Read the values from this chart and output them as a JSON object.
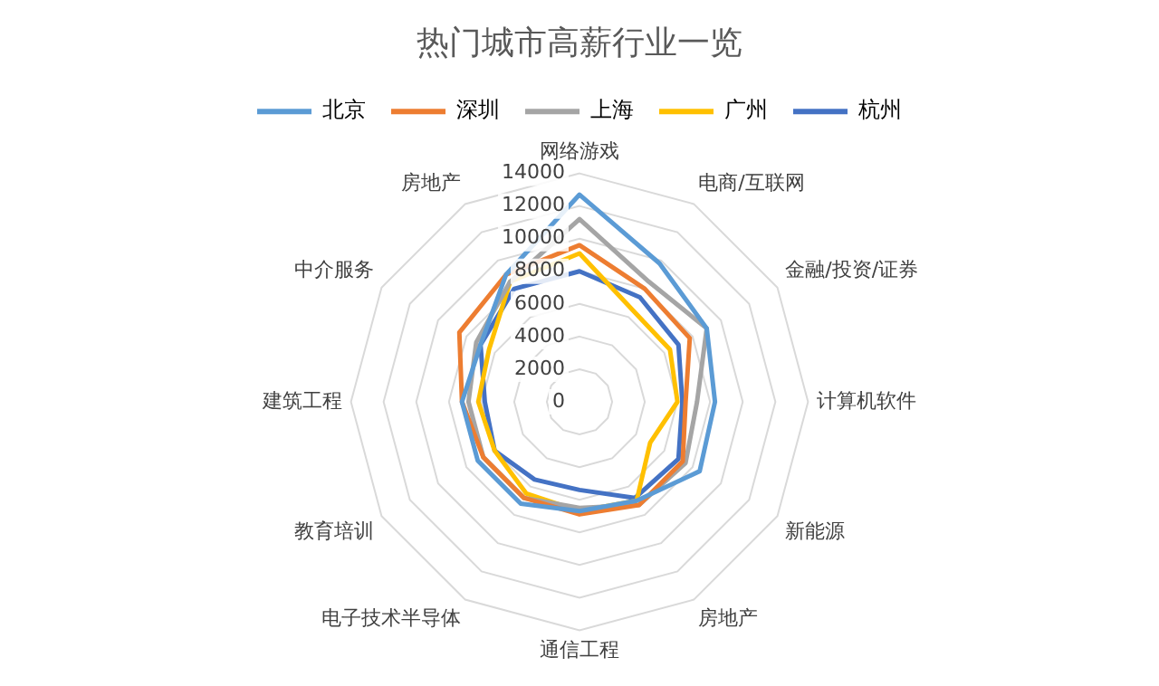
{
  "chart_data": {
    "type": "radar",
    "title": "热门城市高薪行业一览",
    "categories": [
      "网络游戏",
      "电商/互联网",
      "金融/投资/证券",
      "计算机软件",
      "新能源",
      "房地产",
      "通信工程",
      "电子技术半导体",
      "教育培训",
      "建筑工程",
      "中介服务",
      "房地产"
    ],
    "series": [
      {
        "name": "北京",
        "color": "#5b9bd5",
        "values": [
          12700,
          9800,
          9000,
          8300,
          8500,
          7000,
          6700,
          7200,
          7200,
          7200,
          7000,
          9000
        ]
      },
      {
        "name": "深圳",
        "color": "#ed7d31",
        "values": [
          9600,
          8000,
          7800,
          6500,
          7300,
          7300,
          6900,
          6800,
          6800,
          7200,
          8500,
          9000
        ]
      },
      {
        "name": "上海",
        "color": "#a5a5a5",
        "values": [
          11200,
          8500,
          9000,
          7200,
          7500,
          7300,
          6500,
          6800,
          6800,
          6800,
          7300,
          8500
        ]
      },
      {
        "name": "广州",
        "color": "#ffc000",
        "values": [
          9100,
          6500,
          6400,
          6000,
          5000,
          7000,
          6700,
          6500,
          6000,
          6200,
          6400,
          8500
        ]
      },
      {
        "name": "杭州",
        "color": "#4472c4",
        "values": [
          8000,
          7400,
          7000,
          6300,
          7000,
          6800,
          5400,
          5500,
          6000,
          5800,
          7000,
          8000
        ]
      }
    ],
    "ylim": [
      0,
      14000
    ],
    "yticks": [
      0,
      2000,
      4000,
      6000,
      8000,
      10000,
      12000,
      14000
    ],
    "grid": true,
    "legend": "top",
    "marker": "none"
  }
}
